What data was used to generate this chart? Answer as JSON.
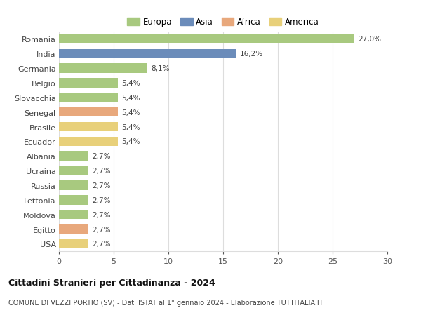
{
  "categories": [
    "Romania",
    "India",
    "Germania",
    "Belgio",
    "Slovacchia",
    "Senegal",
    "Brasile",
    "Ecuador",
    "Albania",
    "Ucraina",
    "Russia",
    "Lettonia",
    "Moldova",
    "Egitto",
    "USA"
  ],
  "values": [
    27.0,
    16.2,
    8.1,
    5.4,
    5.4,
    5.4,
    5.4,
    5.4,
    2.7,
    2.7,
    2.7,
    2.7,
    2.7,
    2.7,
    2.7
  ],
  "labels": [
    "27,0%",
    "16,2%",
    "8,1%",
    "5,4%",
    "5,4%",
    "5,4%",
    "5,4%",
    "5,4%",
    "2,7%",
    "2,7%",
    "2,7%",
    "2,7%",
    "2,7%",
    "2,7%",
    "2,7%"
  ],
  "colors": [
    "#a8c97f",
    "#6b8cba",
    "#a8c97f",
    "#a8c97f",
    "#a8c97f",
    "#e8a87c",
    "#e8d07a",
    "#e8d07a",
    "#a8c97f",
    "#a8c97f",
    "#a8c97f",
    "#a8c97f",
    "#a8c97f",
    "#e8a87c",
    "#e8d07a"
  ],
  "legend_labels": [
    "Europa",
    "Asia",
    "Africa",
    "America"
  ],
  "legend_colors": [
    "#a8c97f",
    "#6b8cba",
    "#e8a87c",
    "#e8d07a"
  ],
  "title": "Cittadini Stranieri per Cittadinanza - 2024",
  "subtitle": "COMUNE DI VEZZI PORTIO (SV) - Dati ISTAT al 1° gennaio 2024 - Elaborazione TUTTITALIA.IT",
  "xlim": [
    0,
    30
  ],
  "xticks": [
    0,
    5,
    10,
    15,
    20,
    25,
    30
  ],
  "background_color": "#ffffff",
  "grid_color": "#dddddd",
  "bar_height": 0.65
}
